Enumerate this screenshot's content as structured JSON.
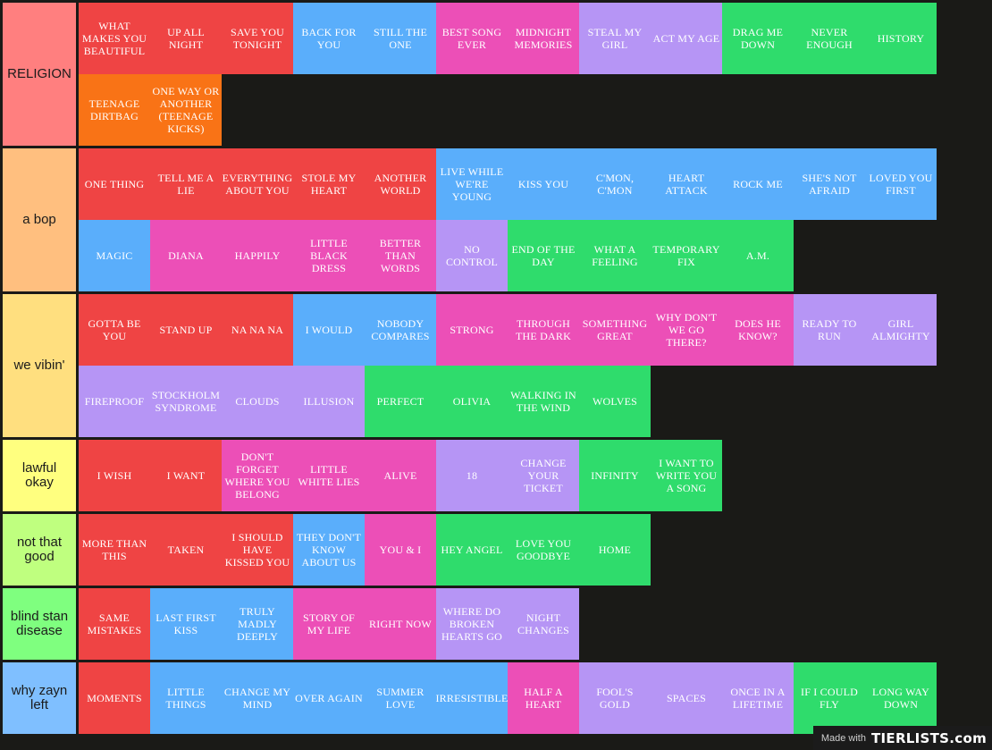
{
  "colors": {
    "red": "#ef4444",
    "orange": "#f97316",
    "blue": "#5aaefb",
    "pink": "#ec4fb7",
    "purple": "#b695f5",
    "green": "#2fdc6c"
  },
  "tiers": [
    {
      "label": "RELIGION",
      "color": "#ff7f7f",
      "items": [
        {
          "text": "WHAT MAKES YOU BEAUTIFUL",
          "color": "red"
        },
        {
          "text": "UP ALL NIGHT",
          "color": "red"
        },
        {
          "text": "SAVE YOU TONIGHT",
          "color": "red"
        },
        {
          "text": "BACK FOR YOU",
          "color": "blue"
        },
        {
          "text": "STILL THE ONE",
          "color": "blue"
        },
        {
          "text": "BEST SONG EVER",
          "color": "pink"
        },
        {
          "text": "MIDNIGHT MEMORIES",
          "color": "pink"
        },
        {
          "text": "STEAL MY GIRL",
          "color": "purple"
        },
        {
          "text": "ACT MY AGE",
          "color": "purple"
        },
        {
          "text": "DRAG ME DOWN",
          "color": "green"
        },
        {
          "text": "NEVER ENOUGH",
          "color": "green"
        },
        {
          "text": "HISTORY",
          "color": "green"
        },
        {
          "text": "TEENAGE DIRTBAG",
          "color": "orange"
        },
        {
          "text": "ONE WAY OR ANOTHER (TEENAGE KICKS)",
          "color": "orange"
        }
      ]
    },
    {
      "label": "a bop",
      "color": "#ffbf7f",
      "items": [
        {
          "text": "ONE THING",
          "color": "red"
        },
        {
          "text": "TELL ME A LIE",
          "color": "red"
        },
        {
          "text": "EVERYTHING ABOUT YOU",
          "color": "red"
        },
        {
          "text": "STOLE MY HEART",
          "color": "red"
        },
        {
          "text": "ANOTHER WORLD",
          "color": "red"
        },
        {
          "text": "LIVE WHILE WE'RE YOUNG",
          "color": "blue"
        },
        {
          "text": "KISS YOU",
          "color": "blue"
        },
        {
          "text": "C'MON, C'MON",
          "color": "blue"
        },
        {
          "text": "HEART ATTACK",
          "color": "blue"
        },
        {
          "text": "ROCK ME",
          "color": "blue"
        },
        {
          "text": "SHE'S NOT AFRAID",
          "color": "blue"
        },
        {
          "text": "LOVED YOU FIRST",
          "color": "blue"
        },
        {
          "text": "MAGIC",
          "color": "blue"
        },
        {
          "text": "DIANA",
          "color": "pink"
        },
        {
          "text": "HAPPILY",
          "color": "pink"
        },
        {
          "text": "LITTLE BLACK DRESS",
          "color": "pink"
        },
        {
          "text": "BETTER THAN WORDS",
          "color": "pink"
        },
        {
          "text": "NO CONTROL",
          "color": "purple"
        },
        {
          "text": "END OF THE DAY",
          "color": "green"
        },
        {
          "text": "WHAT A FEELING",
          "color": "green"
        },
        {
          "text": "TEMPORARY FIX",
          "color": "green"
        },
        {
          "text": "A.M.",
          "color": "green"
        }
      ]
    },
    {
      "label": "we vibin'",
      "color": "#ffdf7f",
      "items": [
        {
          "text": "GOTTA BE YOU",
          "color": "red"
        },
        {
          "text": "STAND UP",
          "color": "red"
        },
        {
          "text": "NA NA NA",
          "color": "red"
        },
        {
          "text": "I WOULD",
          "color": "blue"
        },
        {
          "text": "NOBODY COMPARES",
          "color": "blue"
        },
        {
          "text": "STRONG",
          "color": "pink"
        },
        {
          "text": "THROUGH THE DARK",
          "color": "pink"
        },
        {
          "text": "SOMETHING GREAT",
          "color": "pink"
        },
        {
          "text": "WHY DON'T WE GO THERE?",
          "color": "pink"
        },
        {
          "text": "DOES HE KNOW?",
          "color": "pink"
        },
        {
          "text": "READY TO RUN",
          "color": "purple"
        },
        {
          "text": "GIRL ALMIGHTY",
          "color": "purple"
        },
        {
          "text": "FIREPROOF",
          "color": "purple"
        },
        {
          "text": "STOCKHOLM SYNDROME",
          "color": "purple"
        },
        {
          "text": "CLOUDS",
          "color": "purple"
        },
        {
          "text": "ILLUSION",
          "color": "purple"
        },
        {
          "text": "PERFECT",
          "color": "green"
        },
        {
          "text": "OLIVIA",
          "color": "green"
        },
        {
          "text": "WALKING IN THE WIND",
          "color": "green"
        },
        {
          "text": "WOLVES",
          "color": "green"
        }
      ]
    },
    {
      "label": "lawful okay",
      "color": "#ffff7f",
      "items": [
        {
          "text": "I WISH",
          "color": "red"
        },
        {
          "text": "I WANT",
          "color": "red"
        },
        {
          "text": "DON'T FORGET WHERE YOU BELONG",
          "color": "pink"
        },
        {
          "text": "LITTLE WHITE LIES",
          "color": "pink"
        },
        {
          "text": "ALIVE",
          "color": "pink"
        },
        {
          "text": "18",
          "color": "purple"
        },
        {
          "text": "CHANGE YOUR TICKET",
          "color": "purple"
        },
        {
          "text": "INFINITY",
          "color": "green"
        },
        {
          "text": "I WANT TO WRITE YOU A SONG",
          "color": "green"
        }
      ]
    },
    {
      "label": "not that good",
      "color": "#bfff7f",
      "items": [
        {
          "text": "MORE THAN THIS",
          "color": "red"
        },
        {
          "text": "TAKEN",
          "color": "red"
        },
        {
          "text": "I SHOULD HAVE KISSED YOU",
          "color": "red"
        },
        {
          "text": "THEY DON'T KNOW ABOUT US",
          "color": "blue"
        },
        {
          "text": "YOU & I",
          "color": "pink"
        },
        {
          "text": "HEY ANGEL",
          "color": "green"
        },
        {
          "text": "LOVE YOU GOODBYE",
          "color": "green"
        },
        {
          "text": "HOME",
          "color": "green"
        }
      ]
    },
    {
      "label": "blind stan disease",
      "color": "#7fff7f",
      "items": [
        {
          "text": "SAME MISTAKES",
          "color": "red"
        },
        {
          "text": "LAST FIRST KISS",
          "color": "blue"
        },
        {
          "text": "TRULY MADLY DEEPLY",
          "color": "blue"
        },
        {
          "text": "STORY OF MY LIFE",
          "color": "pink"
        },
        {
          "text": "RIGHT NOW",
          "color": "pink"
        },
        {
          "text": "WHERE DO BROKEN HEARTS GO",
          "color": "purple"
        },
        {
          "text": "NIGHT CHANGES",
          "color": "purple"
        }
      ]
    },
    {
      "label": "why zayn left",
      "color": "#7fbfff",
      "items": [
        {
          "text": "MOMENTS",
          "color": "red"
        },
        {
          "text": "LITTLE THINGS",
          "color": "blue"
        },
        {
          "text": "CHANGE MY MIND",
          "color": "blue"
        },
        {
          "text": "OVER AGAIN",
          "color": "blue"
        },
        {
          "text": "SUMMER LOVE",
          "color": "blue"
        },
        {
          "text": "IRRESISTIBLE",
          "color": "blue"
        },
        {
          "text": "HALF A HEART",
          "color": "pink"
        },
        {
          "text": "FOOL'S GOLD",
          "color": "purple"
        },
        {
          "text": "SPACES",
          "color": "purple"
        },
        {
          "text": "ONCE IN A LIFETIME",
          "color": "purple"
        },
        {
          "text": "IF I COULD FLY",
          "color": "green"
        },
        {
          "text": "LONG WAY DOWN",
          "color": "green"
        }
      ]
    }
  ],
  "watermark": {
    "made_with": "Made with",
    "brand": "TIERLISTS.com"
  }
}
